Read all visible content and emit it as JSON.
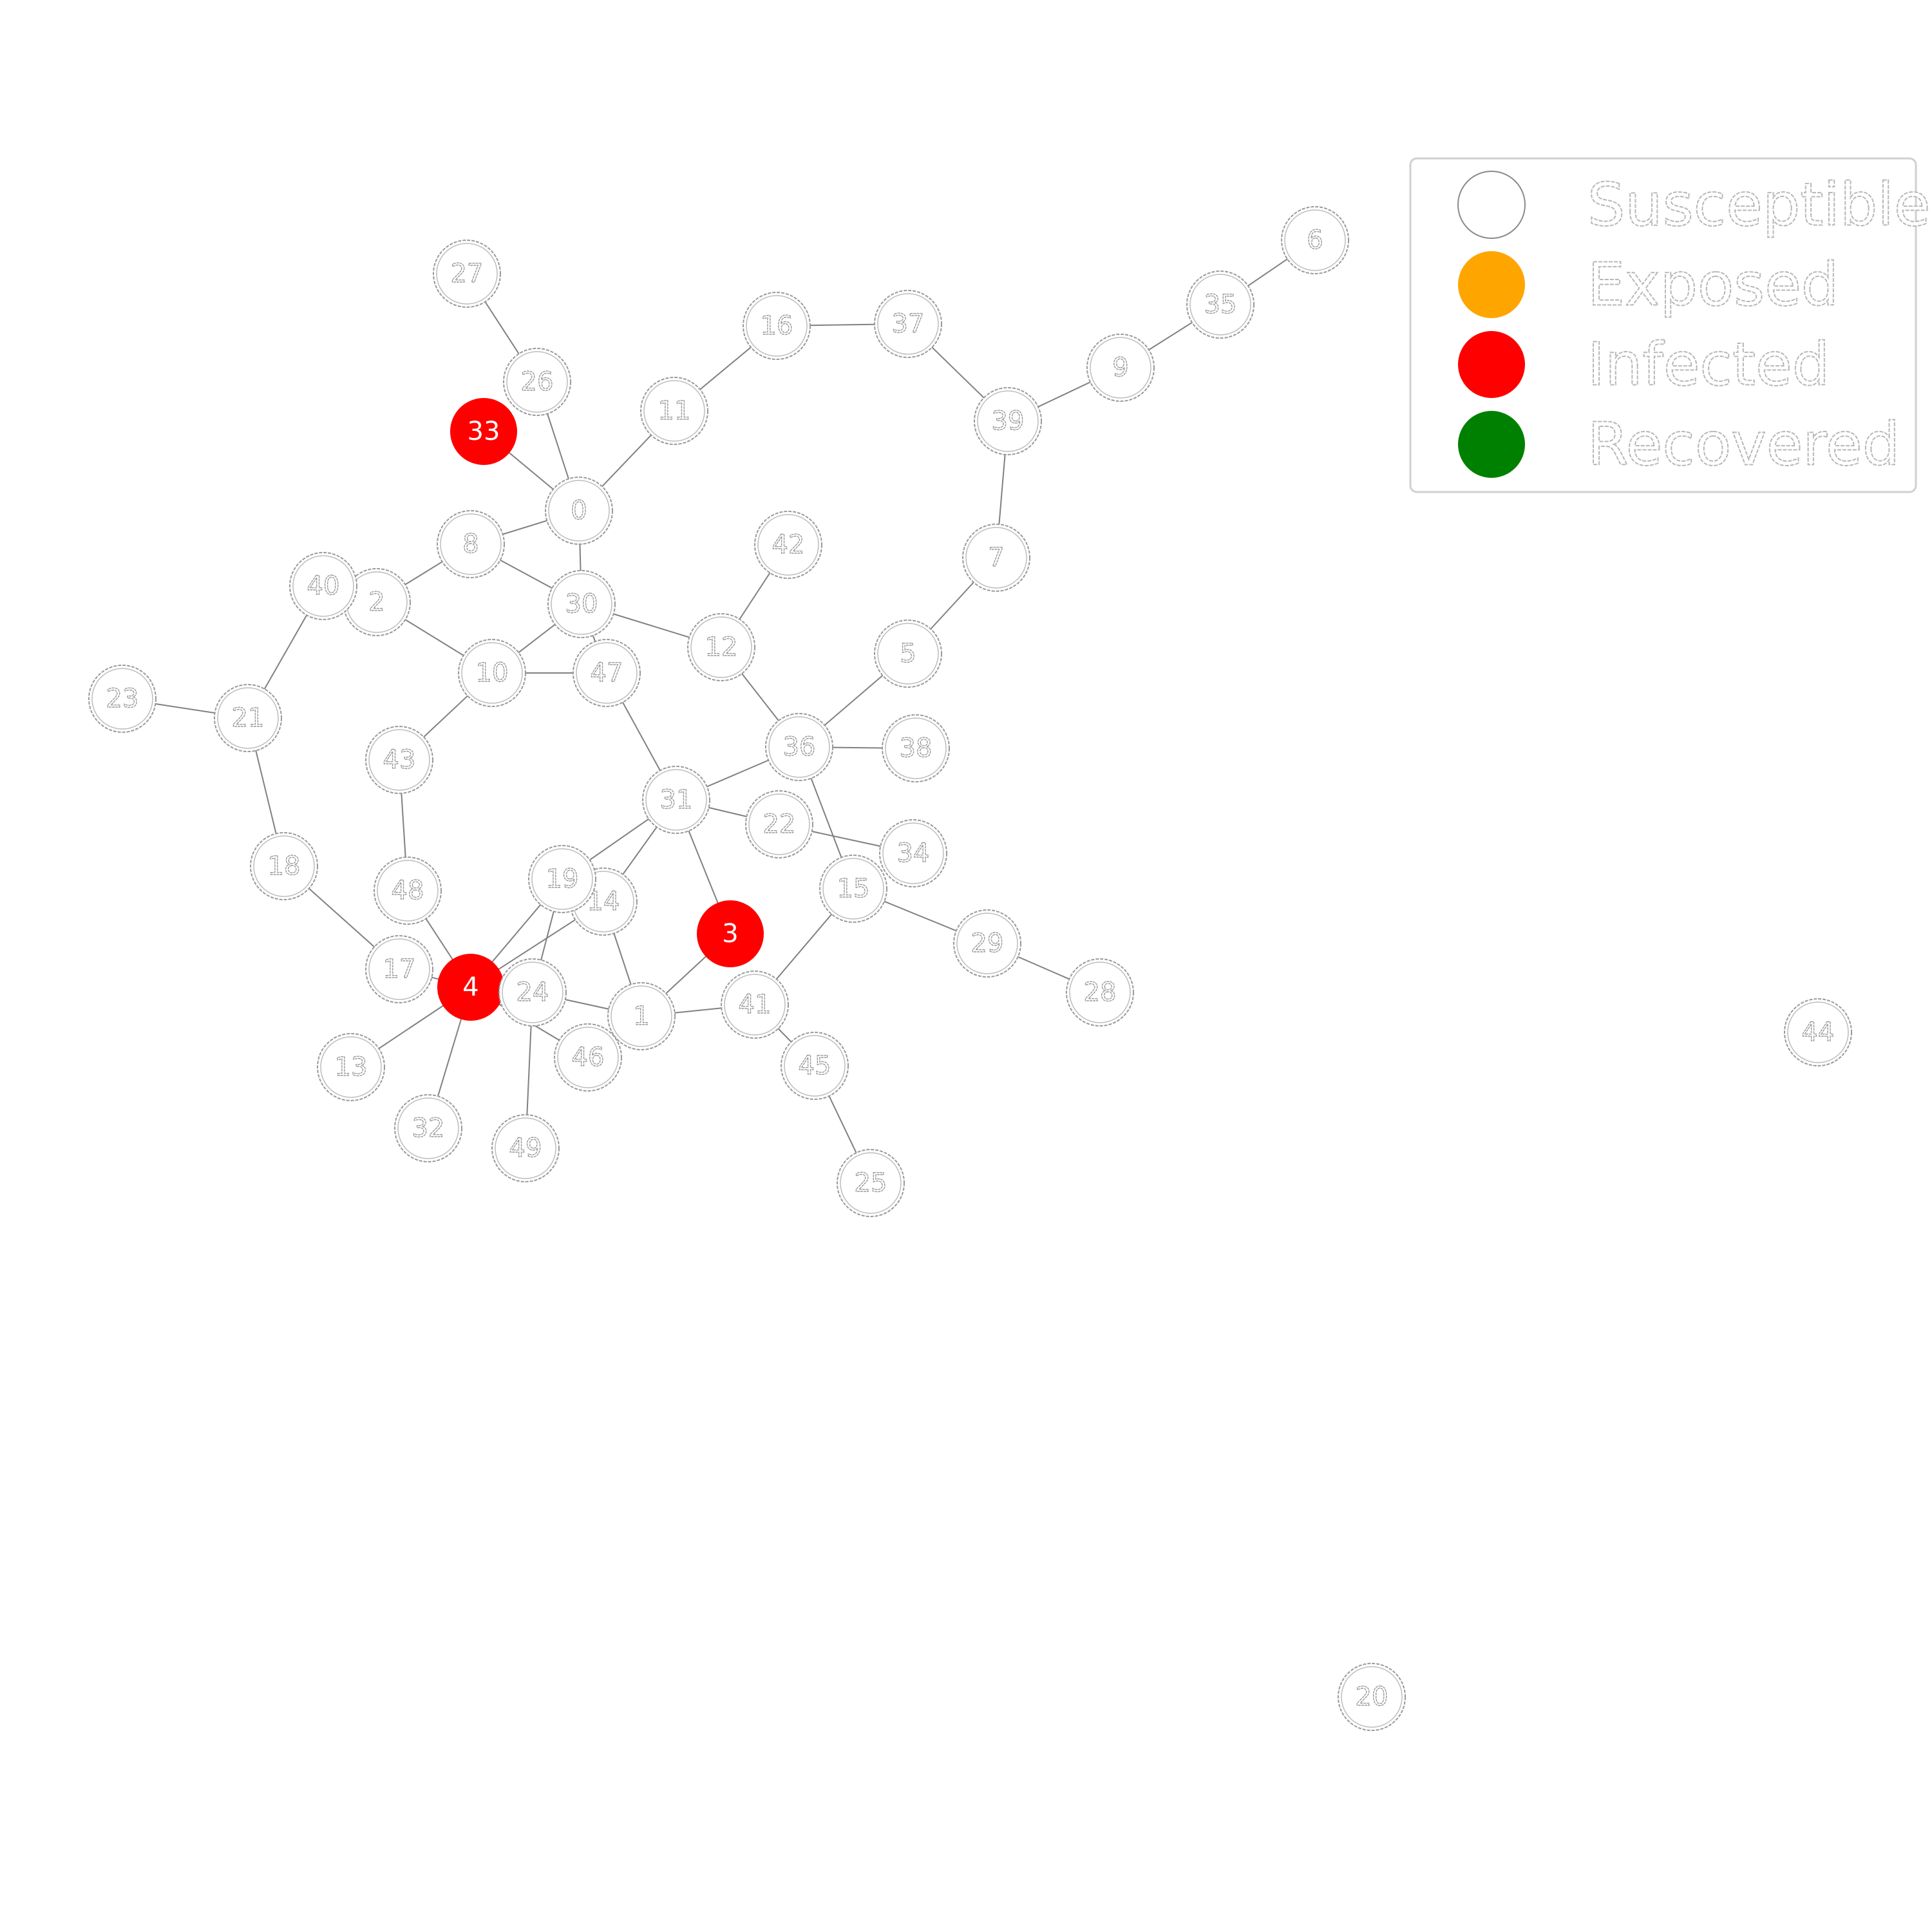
{
  "graph": {
    "colors": {
      "susceptible": "#ffffff",
      "exposed": "#ffa500",
      "infected": "#ff0000",
      "recovered": "#008000"
    },
    "nodes": [
      {
        "id": "0",
        "state": "susceptible"
      },
      {
        "id": "1",
        "state": "susceptible"
      },
      {
        "id": "2",
        "state": "susceptible"
      },
      {
        "id": "3",
        "state": "infected"
      },
      {
        "id": "4",
        "state": "infected"
      },
      {
        "id": "5",
        "state": "susceptible"
      },
      {
        "id": "6",
        "state": "susceptible"
      },
      {
        "id": "7",
        "state": "susceptible"
      },
      {
        "id": "8",
        "state": "susceptible"
      },
      {
        "id": "9",
        "state": "susceptible"
      },
      {
        "id": "10",
        "state": "susceptible"
      },
      {
        "id": "11",
        "state": "susceptible"
      },
      {
        "id": "12",
        "state": "susceptible"
      },
      {
        "id": "13",
        "state": "susceptible"
      },
      {
        "id": "14",
        "state": "susceptible"
      },
      {
        "id": "15",
        "state": "susceptible"
      },
      {
        "id": "16",
        "state": "susceptible"
      },
      {
        "id": "17",
        "state": "susceptible"
      },
      {
        "id": "18",
        "state": "susceptible"
      },
      {
        "id": "19",
        "state": "susceptible"
      },
      {
        "id": "20",
        "state": "susceptible"
      },
      {
        "id": "21",
        "state": "susceptible"
      },
      {
        "id": "22",
        "state": "susceptible"
      },
      {
        "id": "23",
        "state": "susceptible"
      },
      {
        "id": "24",
        "state": "susceptible"
      },
      {
        "id": "25",
        "state": "susceptible"
      },
      {
        "id": "26",
        "state": "susceptible"
      },
      {
        "id": "27",
        "state": "susceptible"
      },
      {
        "id": "28",
        "state": "susceptible"
      },
      {
        "id": "29",
        "state": "susceptible"
      },
      {
        "id": "30",
        "state": "susceptible"
      },
      {
        "id": "31",
        "state": "susceptible"
      },
      {
        "id": "32",
        "state": "susceptible"
      },
      {
        "id": "33",
        "state": "infected"
      },
      {
        "id": "34",
        "state": "susceptible"
      },
      {
        "id": "35",
        "state": "susceptible"
      },
      {
        "id": "36",
        "state": "susceptible"
      },
      {
        "id": "37",
        "state": "susceptible"
      },
      {
        "id": "38",
        "state": "susceptible"
      },
      {
        "id": "39",
        "state": "susceptible"
      },
      {
        "id": "40",
        "state": "susceptible"
      },
      {
        "id": "41",
        "state": "susceptible"
      },
      {
        "id": "42",
        "state": "susceptible"
      },
      {
        "id": "43",
        "state": "susceptible"
      },
      {
        "id": "44",
        "state": "susceptible"
      },
      {
        "id": "45",
        "state": "susceptible"
      },
      {
        "id": "46",
        "state": "susceptible"
      },
      {
        "id": "47",
        "state": "susceptible"
      },
      {
        "id": "48",
        "state": "susceptible"
      },
      {
        "id": "49",
        "state": "susceptible"
      }
    ],
    "edges": [
      [
        "27",
        "26"
      ],
      [
        "26",
        "0"
      ],
      [
        "33",
        "0"
      ],
      [
        "0",
        "11"
      ],
      [
        "0",
        "8"
      ],
      [
        "0",
        "30"
      ],
      [
        "11",
        "16"
      ],
      [
        "16",
        "37"
      ],
      [
        "37",
        "39"
      ],
      [
        "39",
        "9"
      ],
      [
        "9",
        "35"
      ],
      [
        "35",
        "6"
      ],
      [
        "39",
        "7"
      ],
      [
        "7",
        "5"
      ],
      [
        "5",
        "36"
      ],
      [
        "42",
        "12"
      ],
      [
        "12",
        "30"
      ],
      [
        "12",
        "36"
      ],
      [
        "8",
        "2"
      ],
      [
        "8",
        "30"
      ],
      [
        "2",
        "10"
      ],
      [
        "10",
        "30"
      ],
      [
        "10",
        "47"
      ],
      [
        "10",
        "43"
      ],
      [
        "30",
        "47"
      ],
      [
        "47",
        "31"
      ],
      [
        "31",
        "36"
      ],
      [
        "31",
        "22"
      ],
      [
        "22",
        "34"
      ],
      [
        "31",
        "3"
      ],
      [
        "31",
        "19"
      ],
      [
        "31",
        "14"
      ],
      [
        "36",
        "38"
      ],
      [
        "36",
        "15"
      ],
      [
        "15",
        "41"
      ],
      [
        "15",
        "29"
      ],
      [
        "29",
        "28"
      ],
      [
        "41",
        "1"
      ],
      [
        "41",
        "45"
      ],
      [
        "45",
        "25"
      ],
      [
        "3",
        "1"
      ],
      [
        "1",
        "14"
      ],
      [
        "1",
        "24"
      ],
      [
        "24",
        "19"
      ],
      [
        "24",
        "49"
      ],
      [
        "4",
        "19"
      ],
      [
        "4",
        "14"
      ],
      [
        "4",
        "46"
      ],
      [
        "4",
        "13"
      ],
      [
        "4",
        "32"
      ],
      [
        "4",
        "48"
      ],
      [
        "4",
        "17"
      ],
      [
        "17",
        "18"
      ],
      [
        "18",
        "21"
      ],
      [
        "21",
        "23"
      ],
      [
        "21",
        "40"
      ],
      [
        "43",
        "48"
      ]
    ]
  },
  "legend": {
    "items": [
      {
        "label": "Susceptible",
        "state": "susceptible"
      },
      {
        "label": "Exposed",
        "state": "exposed"
      },
      {
        "label": "Infected",
        "state": "infected"
      },
      {
        "label": "Recovered",
        "state": "recovered"
      }
    ]
  }
}
